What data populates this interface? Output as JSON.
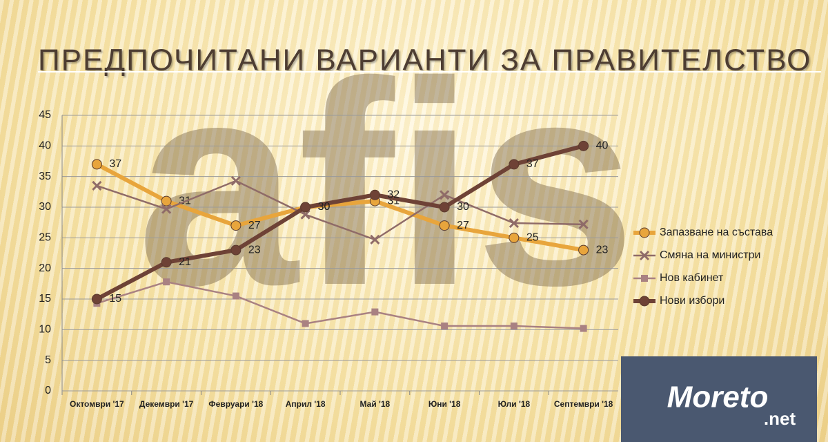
{
  "chart_data": {
    "type": "line",
    "title": "ПРЕДПОЧИТАНИ ВАРИАНТИ ЗА ПРАВИТЕЛСТВО",
    "categories": [
      "Октомври '17",
      "Декември '17",
      "Февруари '18",
      "Април '18",
      "Май '18",
      "Юни '18",
      "Юли '18",
      "Септември '18"
    ],
    "series": [
      {
        "name": "Запазване на състава",
        "color": "#e8a53c",
        "marker": "circle",
        "width": 6,
        "data_labels": true,
        "values": [
          37,
          31,
          27,
          30,
          31,
          27,
          25,
          23
        ]
      },
      {
        "name": "Смяна на министри",
        "color": "#8f6b68",
        "marker": "x",
        "width": 2.5,
        "data_labels": false,
        "values": [
          33.5,
          29.7,
          34.3,
          28.8,
          24.7,
          32,
          27.4,
          27.2
        ]
      },
      {
        "name": "Нов кабинет",
        "color": "#a98182",
        "marker": "square",
        "width": 2.5,
        "data_labels": false,
        "values": [
          14.3,
          17.8,
          15.5,
          11,
          12.9,
          10.6,
          10.6,
          10.2
        ]
      },
      {
        "name": "Нови избори",
        "color": "#6e4236",
        "marker": "circle",
        "width": 6,
        "data_labels": true,
        "values": [
          15,
          21,
          23,
          30,
          32,
          30,
          37,
          40
        ]
      }
    ],
    "ylim": [
      0,
      45
    ],
    "yticks": [
      0,
      5,
      10,
      15,
      20,
      25,
      30,
      35,
      40,
      45
    ],
    "grid": true,
    "legend": "right"
  },
  "watermark": "afis",
  "logo": "Moreto",
  "logo_suffix": ".net"
}
